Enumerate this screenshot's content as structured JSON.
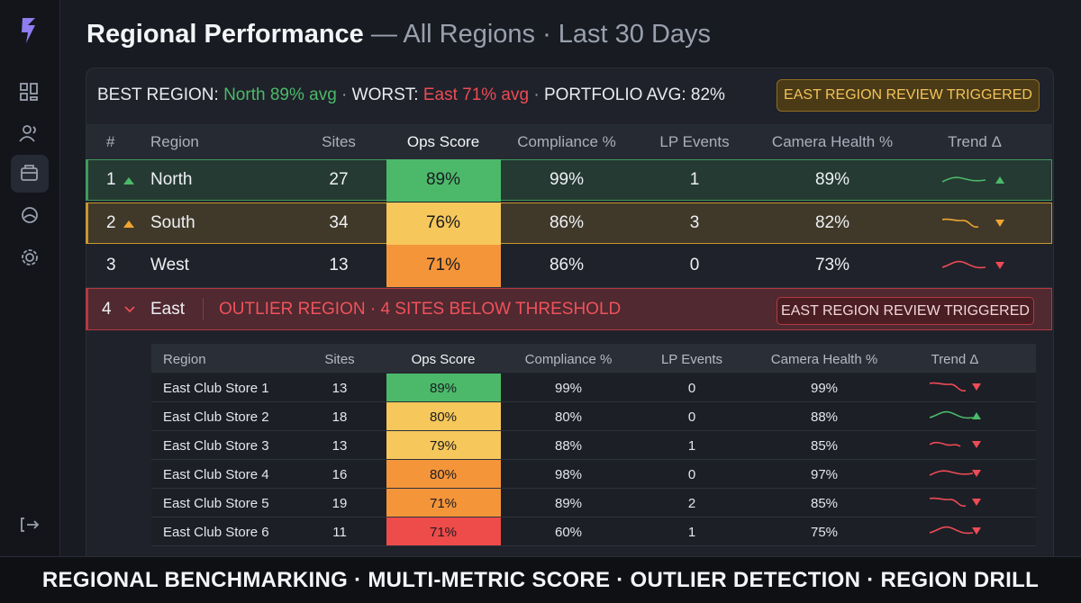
{
  "header": {
    "title": "Regional Performance",
    "subtitle": "— All Regions · Last 30 Days"
  },
  "summary": {
    "best_label": "BEST REGION:",
    "best_value": "North 89% avg",
    "separator": "·",
    "worst_label": "WORST:",
    "worst_value": "East 71% avg",
    "portfolio": "PORTFOLIO AVG: 82%",
    "badge": "EAST REGION REVIEW TRIGGERED"
  },
  "table": {
    "columns": [
      "#",
      "Region",
      "Sites",
      "Ops Score",
      "Compliance %",
      "LP Events",
      "Camera Health %",
      "Trend Δ"
    ],
    "rows": [
      {
        "cells": [
          1,
          "North",
          27,
          "89%",
          "99%",
          1,
          "89%"
        ],
        "score_color": "#4cb96a",
        "row_color": "#3f9b5a",
        "marker": "up",
        "marker_color": "#4cb96a",
        "trend": "up",
        "trend_color": "#4cb96a"
      },
      {
        "cells": [
          2,
          "South",
          34,
          "76%",
          "86%",
          3,
          "82%"
        ],
        "score_color": "#f6c75a",
        "row_color": "#c9962f",
        "marker": "up",
        "marker_color": "#f0a531",
        "trend": "down",
        "trend_color": "#f0a531"
      },
      {
        "cells": [
          3,
          "West",
          13,
          "71%",
          "86%",
          0,
          "73%"
        ],
        "score_color": "#f5953a",
        "trend": "down",
        "trend_color": "#ee4b55"
      }
    ]
  },
  "outlier": {
    "index": 4,
    "region": "East",
    "message": "OUTLIER REGION · 4 SITES BELOW THRESHOLD",
    "badge": "EAST REGION REVIEW TRIGGERED",
    "row_color": "#b33a3f"
  },
  "drill": {
    "columns": [
      "Region",
      "Sites",
      "Ops Score",
      "Compliance %",
      "LP Events",
      "Camera Health %",
      "Trend Δ"
    ],
    "rows": [
      {
        "cells": [
          "East Club Store 1",
          13,
          "89%",
          "99%",
          0,
          "99%"
        ],
        "score_color": "#4cb96a",
        "trend": "down",
        "trend_color": "#ee4b55"
      },
      {
        "cells": [
          "East Club Store 2",
          18,
          "80%",
          "80%",
          0,
          "88%"
        ],
        "score_color": "#f6c75a",
        "trend": "up",
        "trend_color": "#4cb96a"
      },
      {
        "cells": [
          "East Club Store 3",
          13,
          "79%",
          "88%",
          1,
          "85%"
        ],
        "score_color": "#f6c75a",
        "trend": "down",
        "trend_color": "#ee4b55"
      },
      {
        "cells": [
          "East Club Store 4",
          16,
          "80%",
          "98%",
          0,
          "97%"
        ],
        "score_color": "#f5953a",
        "trend": "down",
        "trend_color": "#ee4b55"
      },
      {
        "cells": [
          "East Club Store 5",
          19,
          "71%",
          "89%",
          2,
          "85%"
        ],
        "score_color": "#f5953a",
        "trend": "down",
        "trend_color": "#ee4b55"
      },
      {
        "cells": [
          "East Club Store 6",
          11,
          "71%",
          "60%",
          1,
          "75%"
        ],
        "score_color": "#ee4b4b",
        "trend": "down",
        "trend_color": "#ee4b55"
      }
    ]
  },
  "footer": "REGIONAL BENCHMARKING · MULTI-METRIC SCORE · OUTLIER DETECTION · REGION DRILL"
}
